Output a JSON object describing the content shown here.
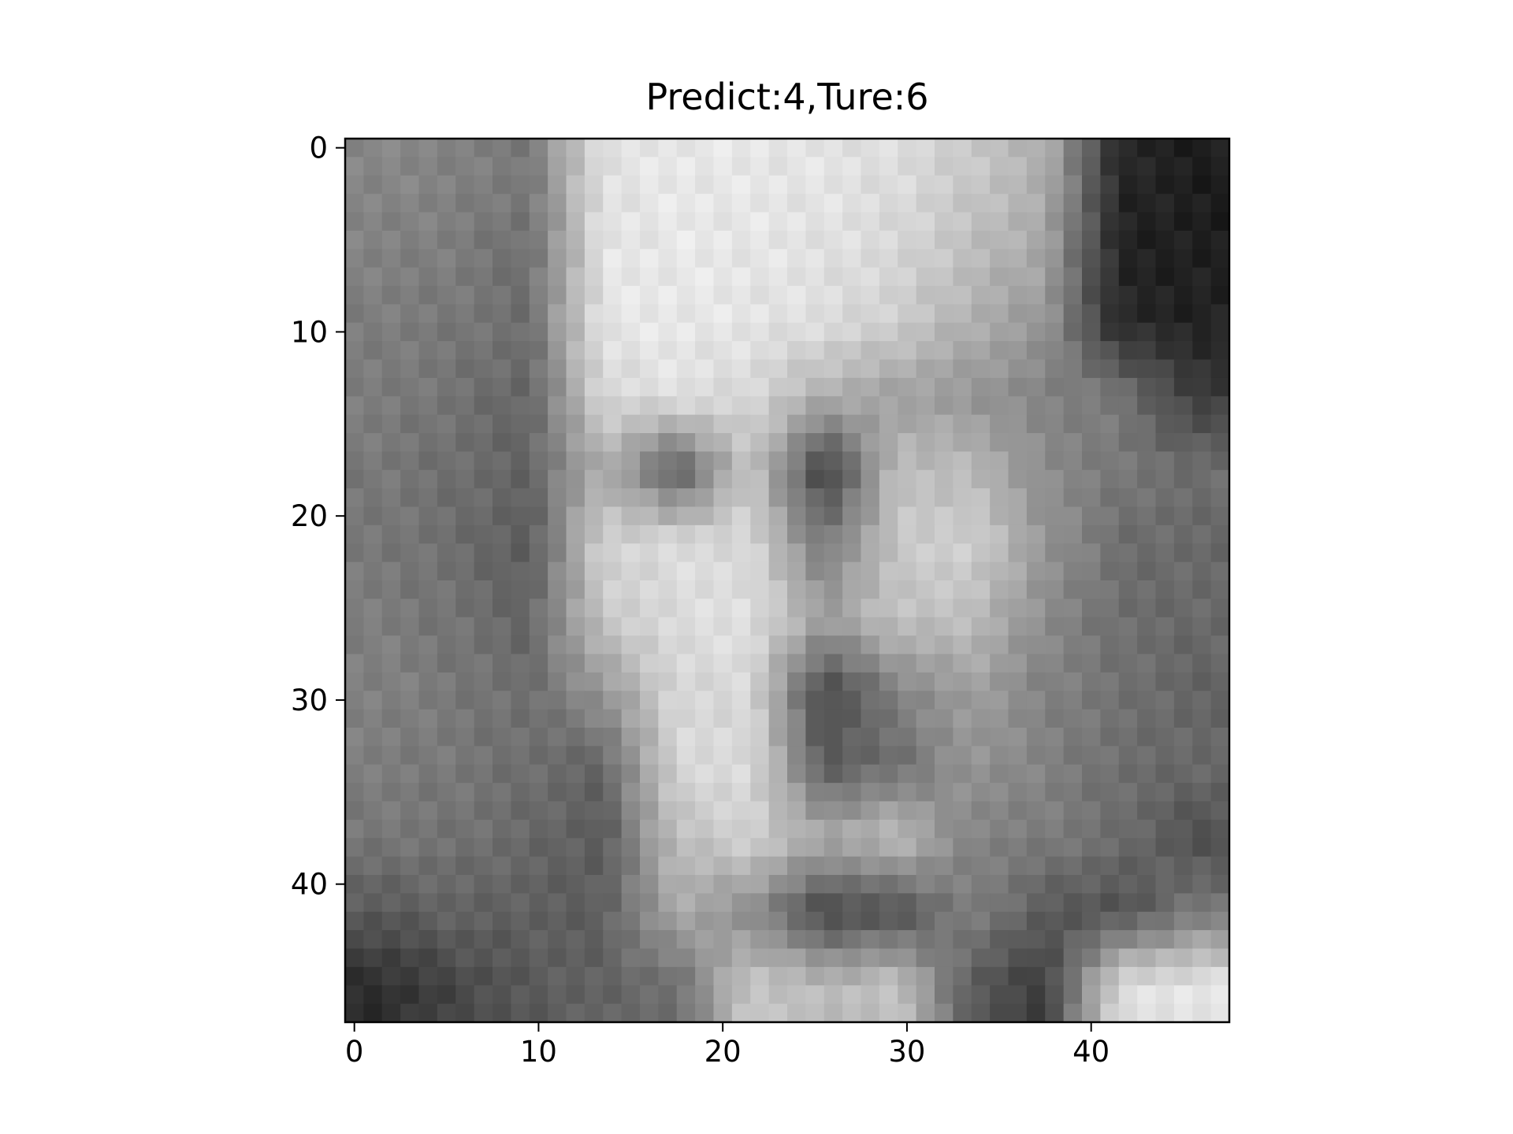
{
  "chart_data": {
    "type": "heatmap",
    "title": "Predict:4,Ture:6",
    "colormap": "gray",
    "image_size": [
      48,
      48
    ],
    "x_ticks": [
      "0",
      "10",
      "20",
      "30",
      "40"
    ],
    "y_ticks": [
      "0",
      "10",
      "20",
      "30",
      "40"
    ],
    "xlim": [
      -0.5,
      47.5
    ],
    "ylim": [
      47.5,
      -0.5
    ],
    "grid": false,
    "intensity_grid_12x12": [
      [
        135,
        130,
        120,
        225,
        232,
        230,
        228,
        220,
        200,
        175,
        40,
        30
      ],
      [
        130,
        125,
        110,
        228,
        232,
        230,
        225,
        215,
        190,
        165,
        35,
        30
      ],
      [
        125,
        120,
        110,
        230,
        232,
        228,
        222,
        205,
        175,
        150,
        40,
        35
      ],
      [
        125,
        115,
        100,
        215,
        225,
        215,
        175,
        160,
        150,
        130,
        120,
        60
      ],
      [
        120,
        110,
        100,
        175,
        90,
        200,
        60,
        190,
        185,
        140,
        120,
        110
      ],
      [
        120,
        110,
        90,
        210,
        220,
        215,
        120,
        200,
        210,
        150,
        110,
        105
      ],
      [
        125,
        115,
        100,
        200,
        220,
        225,
        160,
        195,
        190,
        140,
        110,
        105
      ],
      [
        130,
        120,
        110,
        150,
        215,
        215,
        70,
        130,
        160,
        130,
        115,
        100
      ],
      [
        125,
        120,
        110,
        100,
        215,
        220,
        90,
        110,
        150,
        130,
        110,
        105
      ],
      [
        120,
        115,
        105,
        90,
        190,
        210,
        170,
        190,
        130,
        125,
        110,
        80
      ],
      [
        90,
        100,
        95,
        95,
        170,
        140,
        70,
        80,
        130,
        90,
        80,
        120
      ],
      [
        45,
        70,
        90,
        100,
        110,
        200,
        185,
        195,
        90,
        60,
        220,
        230
      ]
    ]
  }
}
